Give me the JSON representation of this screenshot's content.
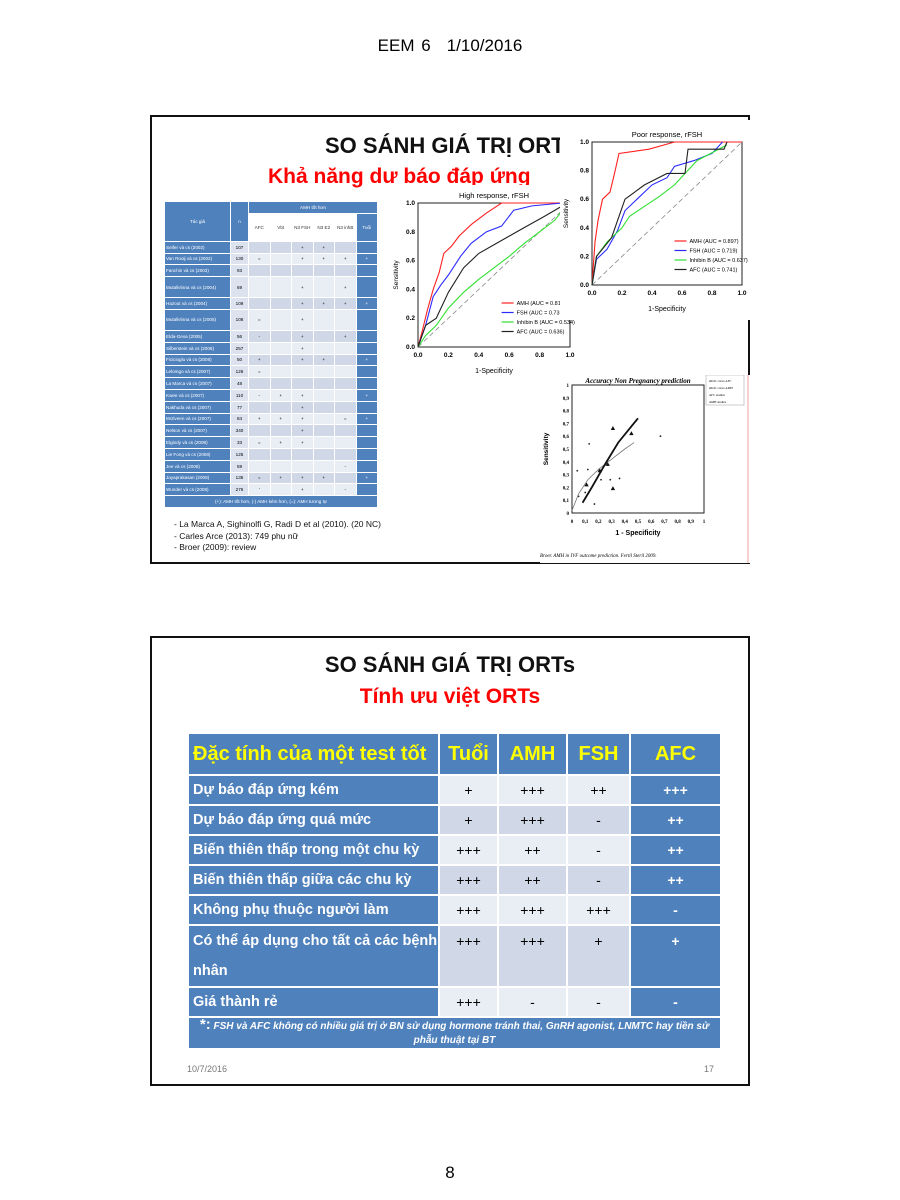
{
  "page_header": {
    "doc": "EEM 6",
    "date": "1/10/2016"
  },
  "page_number": "8",
  "slide1": {
    "title": "SO SÁNH GIÁ TRỊ ORT",
    "subtitle": "Khả năng dư báo đáp ứng",
    "table": {
      "group_header": "AMH tốt hơn",
      "col_author": "Tác giả",
      "col_n": "n",
      "cols": [
        "AFC",
        "Vbt",
        "N3 FSH",
        "N3 E2",
        "N3 inhB",
        "Tuổi"
      ],
      "rows": [
        {
          "author": "Seifer và cs (2002)",
          "n": "107",
          "v": [
            "",
            "",
            "+",
            "+",
            "",
            ""
          ]
        },
        {
          "author": "Van Rooij và cs (2002)",
          "n": "130",
          "v": [
            "=",
            "",
            "+",
            "+",
            "+",
            "+"
          ]
        },
        {
          "author": "Fanchin và cs (2003)",
          "n": "93",
          "v": [
            "",
            "",
            "",
            "",
            "",
            ""
          ]
        },
        {
          "author": "Mutalkrisna và cs (2004)",
          "n": "69",
          "v": [
            "",
            "",
            "+",
            "",
            "+",
            ""
          ],
          "dbl": true
        },
        {
          "author": "Hazout và cs (2004)",
          "n": "109",
          "v": [
            "",
            "",
            "+",
            "+",
            "+",
            "+"
          ]
        },
        {
          "author": "Mutalkrisna và cs (2005)",
          "n": "108",
          "v": [
            "=",
            "",
            "+",
            "",
            "",
            ""
          ],
          "dbl": true
        },
        {
          "author": "Elda-Geva (2005)",
          "n": "56",
          "v": [
            "-",
            "",
            "+",
            "",
            "+",
            ""
          ]
        },
        {
          "author": "Silberstein và cs (2006)",
          "n": "257",
          "v": [
            "",
            "",
            "+",
            "",
            "",
            ""
          ]
        },
        {
          "author": "Ficicioglu và cs (2006)",
          "n": "50",
          "v": [
            "+",
            "",
            "+",
            "+",
            "",
            "+"
          ]
        },
        {
          "author": "Lelomgo và cs (2007)",
          "n": "126",
          "v": [
            "=",
            "",
            "",
            "",
            "",
            ""
          ]
        },
        {
          "author": "La Marca và cs (2007)",
          "n": "48",
          "v": [
            "",
            "",
            "",
            "",
            "",
            ""
          ]
        },
        {
          "author": "Kwee và cs (2007)",
          "n": "110",
          "v": [
            "-",
            "+",
            "+",
            "",
            "",
            "+"
          ]
        },
        {
          "author": "Nakhuda và cs (2007)",
          "n": "77",
          "v": [
            "",
            "",
            "+",
            "",
            "",
            ""
          ]
        },
        {
          "author": "McIlveen và cs (2007)",
          "n": "84",
          "v": [
            "+",
            "+",
            "+",
            "",
            "=",
            "+"
          ]
        },
        {
          "author": "Nelson và cs (2007)",
          "n": "340",
          "v": [
            "",
            "",
            "+",
            "",
            "",
            ""
          ]
        },
        {
          "author": "Elgindy và cs (2008)",
          "n": "33",
          "v": [
            "=",
            "+",
            "+",
            "",
            "",
            ""
          ]
        },
        {
          "author": "Lie Fong và cs (2008)",
          "n": "125",
          "v": [
            "",
            "",
            "",
            "",
            "",
            ""
          ]
        },
        {
          "author": "Jee và cs (2008)",
          "n": "59",
          "v": [
            "",
            "",
            "",
            "",
            "-",
            ""
          ]
        },
        {
          "author": "Jayaprakasan (2008)",
          "n": "135",
          "v": [
            "=",
            "+",
            "+",
            "+",
            "",
            "+"
          ]
        },
        {
          "author": "Wunder và cs (2008)",
          "n": "276",
          "v": [
            "'",
            "",
            "+",
            "",
            "-",
            ""
          ]
        }
      ],
      "footnote": "(+): AMH tốt hơn, (-) AMH kém hơn, (=): AMH tương tự"
    },
    "references": [
      "La Marca A, Sighinolfi G, Radi D et al (2010). (20 NC)",
      "Carles Arce (2013): 749 phụ nữ",
      "Broer (2009): review"
    ]
  },
  "chart_data": [
    {
      "type": "line",
      "title": "High response, rFSH",
      "xlabel": "1-Specificity",
      "ylabel": "Sensitivity",
      "xlim": [
        0,
        1
      ],
      "ylim": [
        0,
        1
      ],
      "ticks": [
        "0.0",
        "0.2",
        "0.4",
        "0.6",
        "0.8",
        "1.0"
      ],
      "legend": "bottom-right",
      "diagonal": true,
      "series": [
        {
          "name": "AMH (AUC = 0.813)",
          "color": "#ff2020",
          "points": [
            [
              0,
              0
            ],
            [
              0.03,
              0.12
            ],
            [
              0.06,
              0.25
            ],
            [
              0.1,
              0.4
            ],
            [
              0.14,
              0.52
            ],
            [
              0.17,
              0.65
            ],
            [
              0.22,
              0.7
            ],
            [
              0.27,
              0.77
            ],
            [
              0.35,
              0.85
            ],
            [
              0.45,
              0.93
            ],
            [
              0.55,
              1
            ],
            [
              1,
              1
            ]
          ]
        },
        {
          "name": "FSH (AUC = 0.731)",
          "color": "#2a2aff",
          "points": [
            [
              0,
              0
            ],
            [
              0.05,
              0.15
            ],
            [
              0.1,
              0.35
            ],
            [
              0.15,
              0.43
            ],
            [
              0.2,
              0.5
            ],
            [
              0.28,
              0.63
            ],
            [
              0.35,
              0.72
            ],
            [
              0.45,
              0.8
            ],
            [
              0.55,
              0.84
            ],
            [
              0.63,
              0.95
            ],
            [
              0.75,
              0.98
            ],
            [
              0.95,
              1
            ]
          ]
        },
        {
          "name": "Inhibin B (AUC = 0.534)",
          "color": "#30e030",
          "points": [
            [
              0,
              0
            ],
            [
              0.05,
              0.08
            ],
            [
              0.12,
              0.15
            ],
            [
              0.2,
              0.27
            ],
            [
              0.3,
              0.38
            ],
            [
              0.4,
              0.47
            ],
            [
              0.5,
              0.55
            ],
            [
              0.6,
              0.63
            ],
            [
              0.7,
              0.72
            ],
            [
              0.8,
              0.8
            ],
            [
              0.9,
              0.88
            ],
            [
              0.95,
              0.95
            ]
          ]
        },
        {
          "name": "AFC (AUC = 0.636)",
          "color": "#222222",
          "points": [
            [
              0,
              0
            ],
            [
              0.05,
              0.15
            ],
            [
              0.12,
              0.2
            ],
            [
              0.2,
              0.38
            ],
            [
              0.3,
              0.55
            ],
            [
              0.4,
              0.65
            ],
            [
              0.5,
              0.71
            ],
            [
              0.6,
              0.77
            ],
            [
              0.7,
              0.83
            ],
            [
              0.82,
              0.9
            ],
            [
              0.95,
              0.98
            ]
          ]
        }
      ]
    },
    {
      "type": "line",
      "title": "Poor response, rFSH",
      "xlabel": "1-Specificity",
      "ylabel": "Sensitivity",
      "xlim": [
        0,
        1
      ],
      "ylim": [
        0,
        1
      ],
      "ticks": [
        "0.0",
        "0.2",
        "0.4",
        "0.6",
        "0.8",
        "1.0"
      ],
      "legend": "bottom-right",
      "diagonal": true,
      "series": [
        {
          "name": "AMH (AUC = 0.897)",
          "color": "#ff2020",
          "points": [
            [
              0,
              0
            ],
            [
              0.02,
              0.3
            ],
            [
              0.04,
              0.45
            ],
            [
              0.07,
              0.6
            ],
            [
              0.12,
              0.65
            ],
            [
              0.15,
              0.78
            ],
            [
              0.18,
              0.92
            ],
            [
              0.38,
              0.95
            ],
            [
              0.55,
              1
            ],
            [
              1,
              1
            ]
          ]
        },
        {
          "name": "FSH (AUC = 0.719)",
          "color": "#2a2aff",
          "points": [
            [
              0,
              0
            ],
            [
              0.03,
              0.18
            ],
            [
              0.1,
              0.25
            ],
            [
              0.17,
              0.38
            ],
            [
              0.22,
              0.52
            ],
            [
              0.3,
              0.6
            ],
            [
              0.4,
              0.7
            ],
            [
              0.5,
              0.75
            ],
            [
              0.55,
              0.83
            ],
            [
              0.68,
              0.87
            ],
            [
              0.8,
              0.92
            ],
            [
              0.87,
              1
            ]
          ]
        },
        {
          "name": "Inhibin B (AUC = 0.637)",
          "color": "#30e030",
          "points": [
            [
              0,
              0
            ],
            [
              0.03,
              0.2
            ],
            [
              0.1,
              0.3
            ],
            [
              0.2,
              0.4
            ],
            [
              0.25,
              0.48
            ],
            [
              0.35,
              0.55
            ],
            [
              0.45,
              0.62
            ],
            [
              0.55,
              0.7
            ],
            [
              0.7,
              0.87
            ],
            [
              0.9,
              0.98
            ]
          ]
        },
        {
          "name": "AFC (AUC = 0.741)",
          "color": "#222222",
          "points": [
            [
              0,
              0
            ],
            [
              0.03,
              0.2
            ],
            [
              0.13,
              0.33
            ],
            [
              0.22,
              0.6
            ],
            [
              0.35,
              0.7
            ],
            [
              0.5,
              0.78
            ],
            [
              0.62,
              0.78
            ],
            [
              0.64,
              0.95
            ],
            [
              0.88,
              0.95
            ],
            [
              0.9,
              1
            ]
          ]
        }
      ]
    },
    {
      "type": "scatter",
      "title": "Accuracy Non Pregnancy prediction",
      "xlabel": "1 - Specificity",
      "ylabel": "Sensitivity",
      "xlim": [
        0,
        1
      ],
      "ylim": [
        0,
        1
      ],
      "ticks": [
        "0",
        "0,1",
        "0,2",
        "0,3",
        "0,4",
        "0,5",
        "0,6",
        "0,7",
        "0,8",
        "0,9",
        "1"
      ],
      "legend": "top-right",
      "legend_items": [
        "sROC curve AFC",
        "sROC curve AMH",
        "AFC studies",
        "AMH studies"
      ],
      "caption": "Broer. AMH in IVF outcome prediction. Fertil Steril 2009.",
      "series": [
        {
          "name": "AFC studies",
          "points": [
            [
              0.04,
              0.33
            ],
            [
              0.05,
              0.13
            ],
            [
              0.1,
              0.16
            ],
            [
              0.12,
              0.34
            ],
            [
              0.13,
              0.54
            ],
            [
              0.17,
              0.07
            ],
            [
              0.22,
              0.26
            ],
            [
              0.29,
              0.26
            ],
            [
              0.36,
              0.27
            ],
            [
              0.67,
              0.6
            ]
          ]
        },
        {
          "name": "AMH studies",
          "points": [
            [
              0.11,
              0.22
            ],
            [
              0.21,
              0.33
            ],
            [
              0.27,
              0.38
            ],
            [
              0.31,
              0.19
            ],
            [
              0.31,
              0.66
            ],
            [
              0.45,
              0.62
            ]
          ]
        },
        {
          "name": "sROC curve AFC",
          "points": [
            [
              0,
              0.02
            ],
            [
              0.05,
              0.15
            ],
            [
              0.12,
              0.26
            ],
            [
              0.2,
              0.34
            ],
            [
              0.3,
              0.42
            ],
            [
              0.4,
              0.5
            ],
            [
              0.47,
              0.55
            ]
          ]
        },
        {
          "name": "sROC curve AMH",
          "points": [
            [
              0.08,
              0.08
            ],
            [
              0.15,
              0.2
            ],
            [
              0.25,
              0.38
            ],
            [
              0.35,
              0.55
            ],
            [
              0.5,
              0.74
            ]
          ]
        }
      ]
    }
  ],
  "slide2": {
    "title": "SO SÁNH GIÁ TRỊ ORTs",
    "subtitle": "Tính ưu việt ORTs",
    "headers": [
      "Đặc tính của một test tốt",
      "Tuổi",
      "AMH",
      "FSH",
      "AFC"
    ],
    "rows": [
      [
        "Dự báo đáp ứng kém",
        "+",
        "+++",
        "++",
        "+++"
      ],
      [
        "Dự báo đáp ứng quá mức",
        "+",
        "+++",
        "-",
        "++"
      ],
      [
        "Biến thiên thấp trong một chu kỳ",
        "+++",
        "++",
        "-",
        "++"
      ],
      [
        "Biến thiên thấp giữa các chu kỳ",
        "+++",
        "++",
        "-",
        "++"
      ],
      [
        "Không phụ thuộc người làm",
        "+++",
        "+++",
        "+++",
        "-"
      ],
      [
        "Có thể áp dụng cho tất cả các bệnh nhân",
        "+++",
        "+++",
        "+",
        "+"
      ],
      [
        "Giá thành rẻ",
        "+++",
        "-",
        "-",
        "-"
      ]
    ],
    "note_mark": "*:",
    "note": "FSH và AFC không có nhiều giá trị ở BN sử dụng hormone tránh thai, GnRH agonist, LNMTC hay tiền sử phẫu thuật tại BT",
    "footer_date": "10/7/2016",
    "slide_number": "17"
  }
}
